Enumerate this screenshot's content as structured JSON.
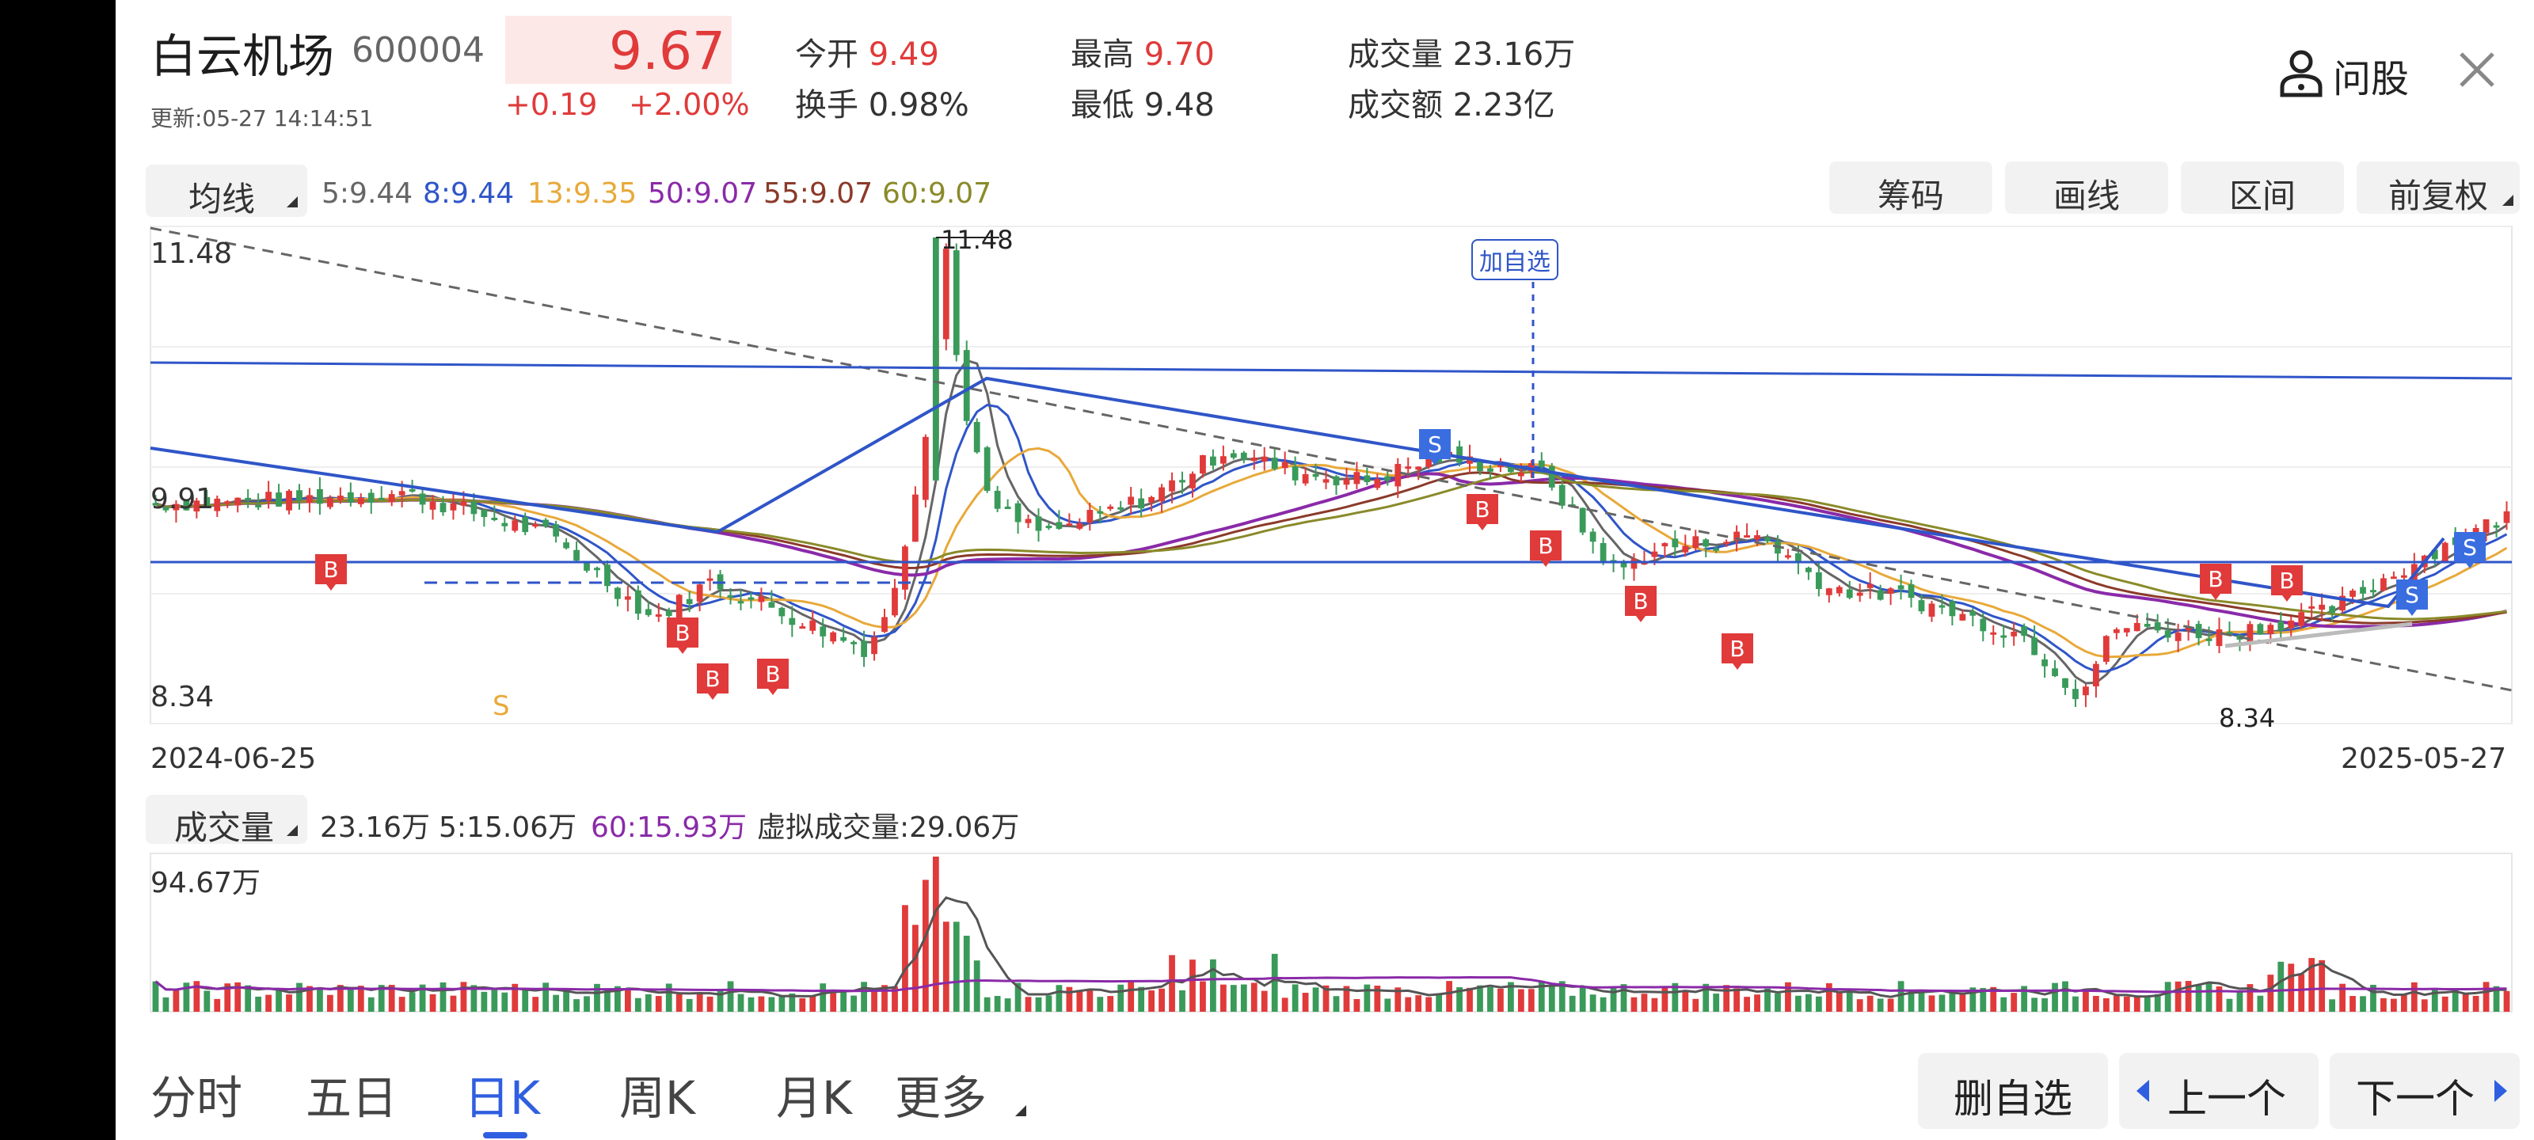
{
  "header": {
    "name": "白云机场",
    "code": "600004",
    "update": "更新:05-27 14:14:51",
    "price": "9.67",
    "change": "+0.19",
    "change_pct": "+2.00%",
    "ask": "问股",
    "close_icon": "close-icon",
    "ask_icon": "user-icon"
  },
  "quote": {
    "open_label": "今开",
    "open": "9.49",
    "high_label": "最高",
    "high": "9.70",
    "volume_label": "成交量",
    "volume": "23.16万",
    "turnover_label": "换手",
    "turnover": "0.98%",
    "low_label": "最低",
    "low": "9.48",
    "amount_label": "成交额",
    "amount": "2.23亿"
  },
  "ma_bar": {
    "selector": "均线",
    "items": [
      {
        "text": "5:9.44",
        "color": "#666666"
      },
      {
        "text": "8:9.44",
        "color": "#2f55c8"
      },
      {
        "text": "13:9.35",
        "color": "#e8a93a"
      },
      {
        "text": "50:9.07",
        "color": "#8a2aa8"
      },
      {
        "text": "55:9.07",
        "color": "#8b3a2a"
      },
      {
        "text": "60:9.07",
        "color": "#8a8a2a"
      }
    ]
  },
  "tools": [
    "筹码",
    "画线",
    "区间",
    "前复权"
  ],
  "chart": {
    "price_top": "11.48",
    "price_mid": "9.91",
    "price_bottom": "8.34",
    "max_mark": "11.48",
    "min_mark": "8.34",
    "add_watch": "加自选",
    "s_mark": "S",
    "buy_mark": "B",
    "sell_mark": "S",
    "date_start": "2024-06-25",
    "date_end": "2025-05-27"
  },
  "volume_bar": {
    "selector": "成交量",
    "v": "23.16万",
    "v5": "5:15.06万",
    "v60": "60:15.93万",
    "virtual": "虚拟成交量:29.06万",
    "max": "94.67万"
  },
  "bottom": {
    "tabs": [
      "分时",
      "五日",
      "日K",
      "周K",
      "月K"
    ],
    "more": "更多",
    "remove": "删自选",
    "prev": "上一个",
    "next": "下一个"
  },
  "colors": {
    "up": "#e03a3a",
    "down": "#3a9a5a",
    "line_blue": "#2f55c8"
  }
}
